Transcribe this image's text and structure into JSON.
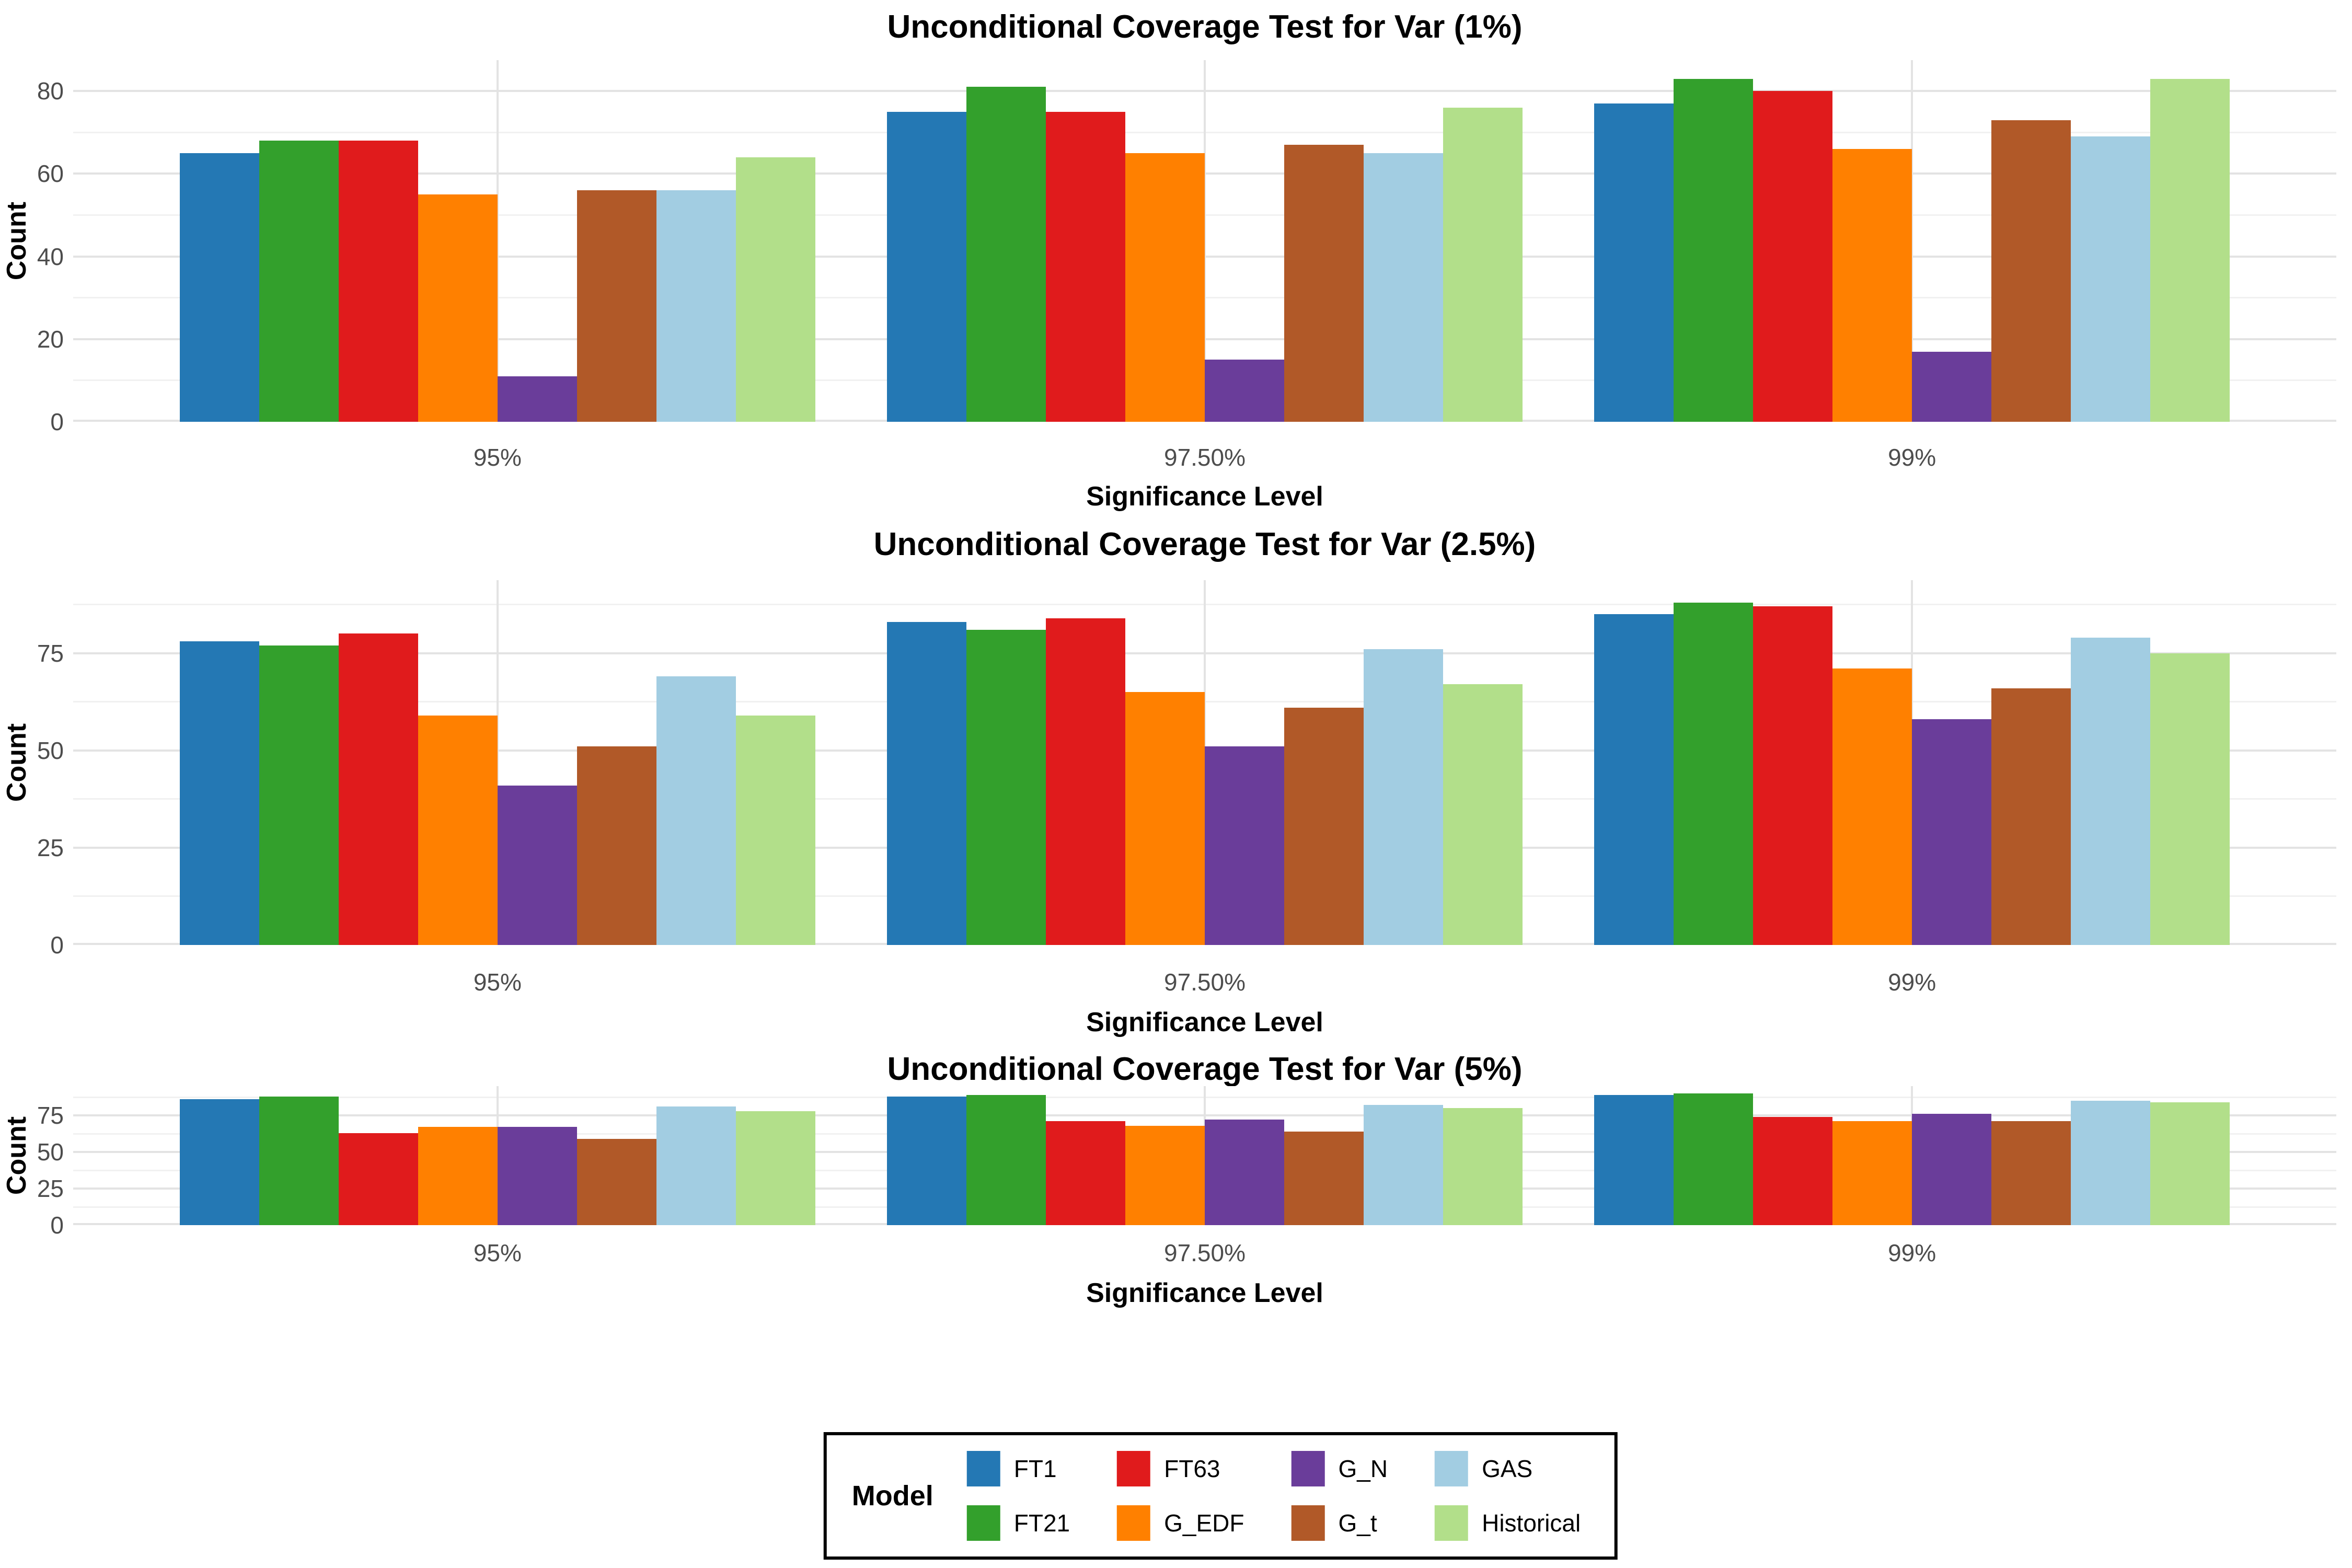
{
  "figure": {
    "background_color": "#ffffff",
    "grid_major_color": "#e3e3e3",
    "grid_minor_color": "#f1f1f1",
    "tick_label_color": "#4d4d4d"
  },
  "models": [
    {
      "name": "FT1",
      "color": "#2478b4"
    },
    {
      "name": "FT21",
      "color": "#33a02c"
    },
    {
      "name": "FT63",
      "color": "#e01b1c"
    },
    {
      "name": "G_EDF",
      "color": "#ff8000"
    },
    {
      "name": "G_N",
      "color": "#6a3d9a"
    },
    {
      "name": "G_t",
      "color": "#b15928"
    },
    {
      "name": "GAS",
      "color": "#a2cde2"
    },
    {
      "name": "Historical",
      "color": "#b2df8a"
    }
  ],
  "legend": {
    "title": "Model",
    "position": "bottom",
    "items": [
      "FT1",
      "FT21",
      "FT63",
      "G_EDF",
      "G_N",
      "G_t",
      "GAS",
      "Historical"
    ]
  },
  "chart_data": [
    {
      "type": "bar",
      "title": "Unconditional Coverage Test for Var (1%)",
      "xlabel": "Significance Level",
      "ylabel": "Count",
      "categories": [
        "95%",
        "97.50%",
        "99%"
      ],
      "y_ticks": [
        0,
        20,
        40,
        60,
        80
      ],
      "y_minor": [
        10,
        30,
        50,
        70
      ],
      "ylim": [
        0,
        87.5
      ],
      "grid": true,
      "series": [
        {
          "name": "FT1",
          "values": [
            65,
            75,
            77
          ]
        },
        {
          "name": "FT21",
          "values": [
            68,
            81,
            83
          ]
        },
        {
          "name": "FT63",
          "values": [
            68,
            75,
            80
          ]
        },
        {
          "name": "G_EDF",
          "values": [
            55,
            65,
            66
          ]
        },
        {
          "name": "G_N",
          "values": [
            11,
            15,
            17
          ]
        },
        {
          "name": "G_t",
          "values": [
            56,
            67,
            73
          ]
        },
        {
          "name": "GAS",
          "values": [
            56,
            65,
            69
          ]
        },
        {
          "name": "Historical",
          "values": [
            64,
            76,
            83
          ]
        }
      ]
    },
    {
      "type": "bar",
      "title": "Unconditional Coverage Test for Var (2.5%)",
      "xlabel": "Significance Level",
      "ylabel": "Count",
      "categories": [
        "95%",
        "97.50%",
        "99%"
      ],
      "y_ticks": [
        0,
        25,
        50,
        75
      ],
      "y_minor": [
        12.5,
        37.5,
        62.5,
        87.5
      ],
      "ylim": [
        0,
        93.75
      ],
      "grid": true,
      "series": [
        {
          "name": "FT1",
          "values": [
            78,
            83,
            85
          ]
        },
        {
          "name": "FT21",
          "values": [
            77,
            81,
            88
          ]
        },
        {
          "name": "FT63",
          "values": [
            80,
            84,
            87
          ]
        },
        {
          "name": "G_EDF",
          "values": [
            59,
            65,
            71
          ]
        },
        {
          "name": "G_N",
          "values": [
            41,
            51,
            58
          ]
        },
        {
          "name": "G_t",
          "values": [
            51,
            61,
            66
          ]
        },
        {
          "name": "GAS",
          "values": [
            69,
            76,
            79
          ]
        },
        {
          "name": "Historical",
          "values": [
            59,
            67,
            75
          ]
        }
      ]
    },
    {
      "type": "bar",
      "title": "Unconditional Coverage Test for Var (5%)",
      "xlabel": "Significance Level",
      "ylabel": "Count",
      "categories": [
        "95%",
        "97.50%",
        "99%"
      ],
      "y_ticks": [
        0,
        25,
        50,
        75
      ],
      "y_minor": [
        12.5,
        37.5,
        62.5,
        87.5
      ],
      "ylim": [
        0,
        95
      ],
      "grid": true,
      "series": [
        {
          "name": "FT1",
          "values": [
            86,
            88,
            89
          ]
        },
        {
          "name": "FT21",
          "values": [
            88,
            89,
            90
          ]
        },
        {
          "name": "FT63",
          "values": [
            63,
            71,
            74
          ]
        },
        {
          "name": "G_EDF",
          "values": [
            67,
            68,
            71
          ]
        },
        {
          "name": "G_N",
          "values": [
            67,
            72,
            76
          ]
        },
        {
          "name": "G_t",
          "values": [
            59,
            64,
            71
          ]
        },
        {
          "name": "GAS",
          "values": [
            81,
            82,
            85
          ]
        },
        {
          "name": "Historical",
          "values": [
            78,
            80,
            84
          ]
        }
      ]
    }
  ]
}
